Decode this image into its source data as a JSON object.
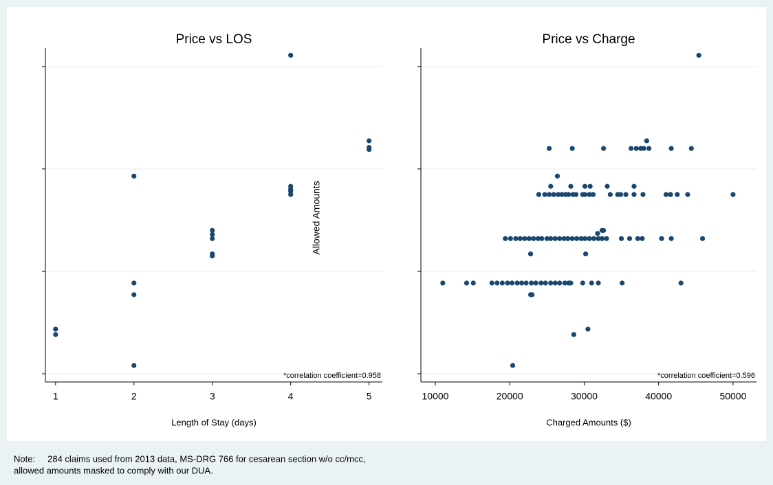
{
  "y_axis_label": "Allowed Amounts",
  "note": [
    "Note:     284 claims used from 2013 data, MS-DRG 766 for cesarean section w/o cc/mcc,",
    "allowed amounts masked to comply with our DUA."
  ],
  "chart_data": [
    {
      "type": "scatter",
      "title": "Price vs LOS",
      "xlabel": "Length of Stay (days)",
      "annotation": "*correlation coefficient=0.958",
      "color": "#1a476f",
      "xlim": [
        0.87,
        5.17
      ],
      "ylim": [
        -0.08,
        3.18
      ],
      "xticks": [
        1,
        2,
        3,
        4,
        5
      ],
      "yticks": [
        0,
        1,
        2,
        3
      ],
      "grid": true,
      "x": [
        1,
        1,
        2,
        2,
        2,
        2,
        3,
        3,
        3,
        3,
        3,
        4,
        4,
        4,
        4,
        4,
        5,
        5,
        5
      ],
      "values": [
        0.436,
        0.383,
        1.93,
        0.886,
        0.772,
        0.081,
        1.4,
        1.36,
        1.32,
        1.17,
        1.15,
        3.11,
        1.83,
        1.8,
        1.78,
        1.75,
        2.275,
        2.21,
        2.19
      ]
    },
    {
      "type": "scatter",
      "title": "Price vs Charge",
      "xlabel": "Charged Amounts ($)",
      "annotation": "*correlation coefficient=0.596",
      "color": "#1a476f",
      "xlim": [
        8060,
        53150
      ],
      "ylim": [
        -0.08,
        3.18
      ],
      "xticks": [
        10000,
        20000,
        30000,
        40000,
        50000
      ],
      "yticks": [
        0,
        1,
        2,
        3
      ],
      "grid": true,
      "x": [
        45400,
        38400,
        25300,
        28400,
        32600,
        36300,
        37000,
        37600,
        38000,
        38700,
        41700,
        44400,
        26400,
        25500,
        28200,
        30100,
        30800,
        33100,
        36700,
        23900,
        24700,
        25300,
        25900,
        26500,
        27000,
        27500,
        27900,
        28500,
        28900,
        29800,
        30100,
        30700,
        31200,
        33500,
        34500,
        34900,
        35600,
        36700,
        37900,
        41000,
        41600,
        42500,
        43900,
        50000,
        32400,
        32600,
        31800,
        19400,
        20100,
        20800,
        21400,
        22000,
        22600,
        23200,
        23800,
        24300,
        25000,
        25500,
        26100,
        26700,
        27300,
        27800,
        28400,
        29000,
        29600,
        30100,
        30700,
        31300,
        31900,
        32400,
        33000,
        35000,
        36100,
        37200,
        37800,
        40400,
        41700,
        45900,
        22800,
        30200,
        11000,
        14200,
        15100,
        17600,
        18300,
        19000,
        19700,
        20300,
        21000,
        21600,
        22200,
        22900,
        23500,
        24200,
        24800,
        25500,
        26100,
        26700,
        27400,
        27900,
        28200,
        29800,
        31000,
        31900,
        35100,
        43000,
        22800,
        23000,
        30500,
        28600,
        20400
      ],
      "values": [
        3.11,
        2.275,
        2.2,
        2.2,
        2.2,
        2.2,
        2.2,
        2.2,
        2.2,
        2.2,
        2.2,
        2.2,
        1.93,
        1.83,
        1.83,
        1.83,
        1.83,
        1.83,
        1.83,
        1.75,
        1.75,
        1.75,
        1.75,
        1.75,
        1.75,
        1.75,
        1.75,
        1.75,
        1.75,
        1.75,
        1.75,
        1.75,
        1.75,
        1.75,
        1.75,
        1.75,
        1.75,
        1.75,
        1.75,
        1.75,
        1.75,
        1.75,
        1.75,
        1.75,
        1.4,
        1.4,
        1.37,
        1.32,
        1.32,
        1.32,
        1.32,
        1.32,
        1.32,
        1.32,
        1.32,
        1.32,
        1.32,
        1.32,
        1.32,
        1.32,
        1.32,
        1.32,
        1.32,
        1.32,
        1.32,
        1.32,
        1.32,
        1.32,
        1.32,
        1.32,
        1.32,
        1.32,
        1.32,
        1.32,
        1.32,
        1.32,
        1.32,
        1.32,
        1.17,
        1.17,
        0.886,
        0.886,
        0.886,
        0.886,
        0.886,
        0.886,
        0.886,
        0.886,
        0.886,
        0.886,
        0.886,
        0.886,
        0.886,
        0.886,
        0.886,
        0.886,
        0.886,
        0.886,
        0.886,
        0.886,
        0.886,
        0.886,
        0.886,
        0.886,
        0.886,
        0.886,
        0.772,
        0.772,
        0.436,
        0.383,
        0.081
      ]
    }
  ]
}
